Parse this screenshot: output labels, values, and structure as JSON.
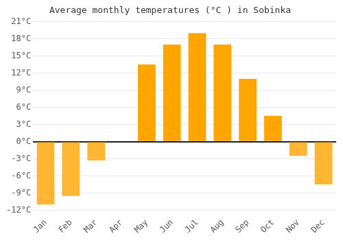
{
  "chart_data": {
    "type": "bar",
    "title": "Average monthly temperatures (°C ) in Sobinka",
    "categories": [
      "Jan",
      "Feb",
      "Mar",
      "Apr",
      "May",
      "Jun",
      "Jul",
      "Aug",
      "Sep",
      "Oct",
      "Nov",
      "Dec"
    ],
    "values": [
      -11.0,
      -9.5,
      -3.3,
      0.0,
      13.5,
      17.0,
      19.0,
      17.0,
      11.0,
      4.5,
      -2.5,
      -7.5
    ],
    "colors": [
      "#FFB733",
      "#FFB733",
      "#FFB733",
      "#FFA500",
      "#FFA500",
      "#FFA500",
      "#FFA500",
      "#FFA500",
      "#FFA500",
      "#FFA500",
      "#FFB733",
      "#FFB733"
    ],
    "ylim": [
      -12,
      21
    ],
    "yticks": [
      {
        "value": -12,
        "label": "-12°C"
      },
      {
        "value": -9,
        "label": "-9°C"
      },
      {
        "value": -6,
        "label": "-6°C"
      },
      {
        "value": -3,
        "label": "-3°C"
      },
      {
        "value": 0,
        "label": "0°C"
      },
      {
        "value": 3,
        "label": "3°C"
      },
      {
        "value": 6,
        "label": "6°C"
      },
      {
        "value": 9,
        "label": "9°C"
      },
      {
        "value": 12,
        "label": "12°C"
      },
      {
        "value": 15,
        "label": "15°C"
      },
      {
        "value": 18,
        "label": "18°C"
      },
      {
        "value": 21,
        "label": "21°C"
      }
    ],
    "grid": true
  }
}
